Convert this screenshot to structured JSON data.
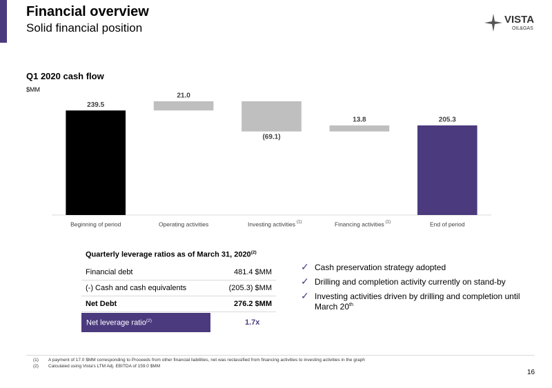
{
  "header": {
    "title": "Financial overview",
    "subtitle": "Solid financial position",
    "logo": "VISTA",
    "logo_sub": "OIL&GAS"
  },
  "chart_data": {
    "type": "waterfall",
    "title": "Q1 2020 cash flow",
    "y_label": "$MM",
    "categories": [
      "Beginning of period",
      "Operating activities",
      "Investing activities",
      "Financing activities",
      "End of period"
    ],
    "category_notes": [
      null,
      null,
      "(1)",
      "(1)",
      null
    ],
    "values": [
      239.5,
      21.0,
      -69.1,
      13.8,
      205.3
    ],
    "value_labels": [
      "239.5",
      "21.0",
      "(69.1)",
      "13.8",
      "205.3"
    ],
    "totals": [
      true,
      false,
      false,
      false,
      true
    ],
    "colors": [
      "#000000",
      "#bfbfbf",
      "#bfbfbf",
      "#bfbfbf",
      "#4b3a7e"
    ]
  },
  "table": {
    "title": "Quarterly leverage ratios as of March 31, 2020",
    "title_note": "(2)",
    "rows": [
      [
        "Financial debt",
        "481.4 $MM"
      ],
      [
        "(-) Cash and cash equivalents",
        "(205.3) $MM"
      ],
      [
        "Net Debt",
        "276.2 $MM"
      ],
      [
        "Net leverage ratio",
        "1.7x"
      ]
    ],
    "row_notes": [
      null,
      null,
      null,
      "(2)"
    ]
  },
  "bullets": [
    {
      "text": "Cash preservation strategy adopted"
    },
    {
      "text": "Drilling and completion activity currently on stand-by"
    },
    {
      "text": "Investing activities driven by drilling and completion until March 20",
      "sup": "th"
    }
  ],
  "footnotes": [
    {
      "marker": "(1)",
      "text": "A payment of 17.0 $MM corresponding to Proceeds from other financial liabilities, net was reclassified from financing activities to investing activities in the graph"
    },
    {
      "marker": "(2)",
      "text": "Calculated using Vista's LTM Adj. EBITDA of 159.0 $MM"
    }
  ],
  "page_number": "16"
}
